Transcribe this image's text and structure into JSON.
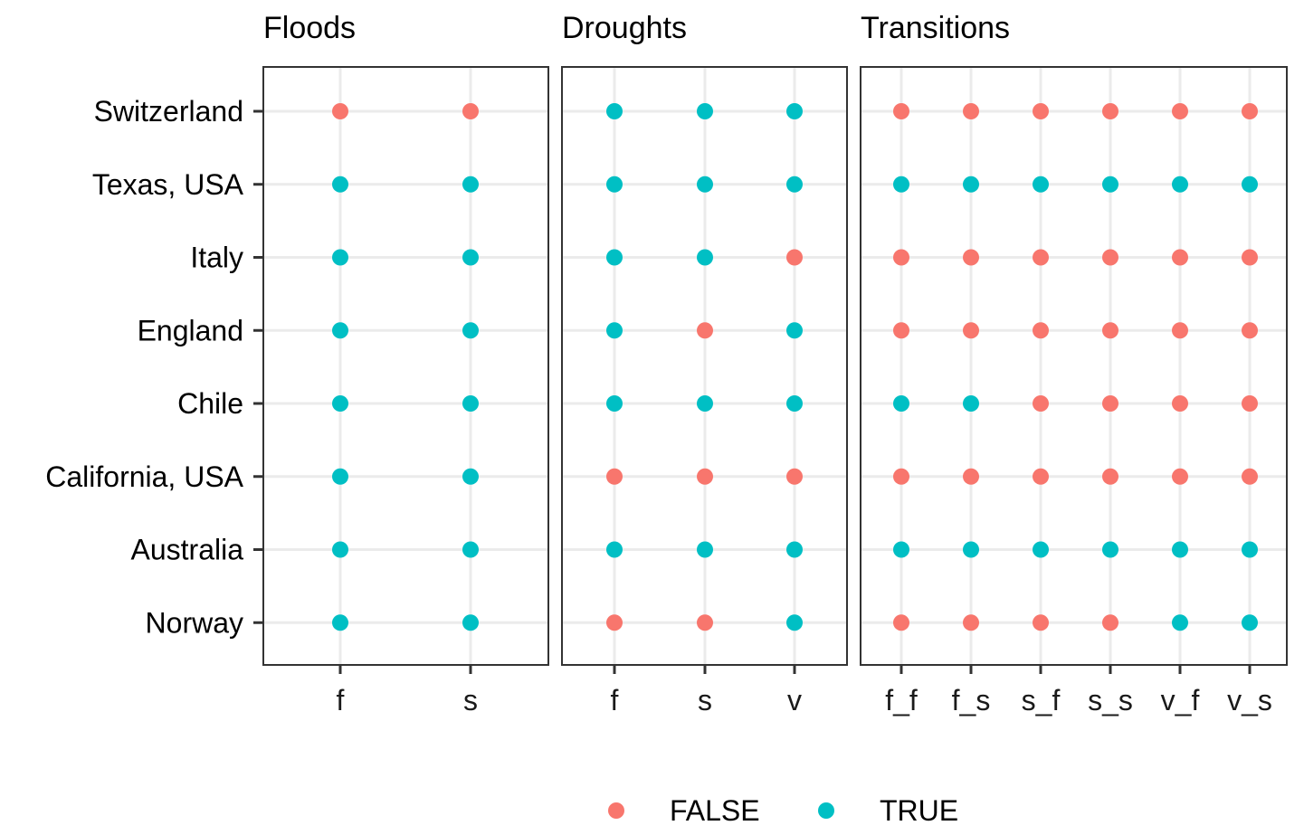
{
  "chart_data": {
    "type": "scatter",
    "panels": [
      {
        "title": "Floods",
        "categories": [
          "f",
          "s"
        ],
        "values": {
          "Switzerland": [
            false,
            false
          ],
          "Texas, USA": [
            true,
            true
          ],
          "Italy": [
            true,
            true
          ],
          "England": [
            true,
            true
          ],
          "Chile": [
            true,
            true
          ],
          "California, USA": [
            true,
            true
          ],
          "Australia": [
            true,
            true
          ],
          "Norway": [
            true,
            true
          ]
        }
      },
      {
        "title": "Droughts",
        "categories": [
          "f",
          "s",
          "v"
        ],
        "values": {
          "Switzerland": [
            true,
            true,
            true
          ],
          "Texas, USA": [
            true,
            true,
            true
          ],
          "Italy": [
            true,
            true,
            false
          ],
          "England": [
            true,
            false,
            true
          ],
          "Chile": [
            true,
            true,
            true
          ],
          "California, USA": [
            false,
            false,
            false
          ],
          "Australia": [
            true,
            true,
            true
          ],
          "Norway": [
            false,
            false,
            true
          ]
        }
      },
      {
        "title": "Transitions",
        "categories": [
          "f_f",
          "f_s",
          "s_f",
          "s_s",
          "v_f",
          "v_s"
        ],
        "values": {
          "Switzerland": [
            false,
            false,
            false,
            false,
            false,
            false
          ],
          "Texas, USA": [
            true,
            true,
            true,
            true,
            true,
            true
          ],
          "Italy": [
            false,
            false,
            false,
            false,
            false,
            false
          ],
          "England": [
            false,
            false,
            false,
            false,
            false,
            false
          ],
          "Chile": [
            true,
            true,
            false,
            false,
            false,
            false
          ],
          "California, USA": [
            false,
            false,
            false,
            false,
            false,
            false
          ],
          "Australia": [
            true,
            true,
            true,
            true,
            true,
            true
          ],
          "Norway": [
            false,
            false,
            false,
            false,
            true,
            true
          ]
        }
      }
    ],
    "y_categories": [
      "Switzerland",
      "Texas, USA",
      "Italy",
      "England",
      "Chile",
      "California, USA",
      "Australia",
      "Norway"
    ],
    "legend": {
      "position": "bottom",
      "entries": [
        {
          "label": "FALSE",
          "value": false,
          "color": "#F8766D"
        },
        {
          "label": "TRUE",
          "value": true,
          "color": "#00BFC4"
        }
      ]
    },
    "grid": true,
    "colors": {
      "false": "#F8766D",
      "true": "#00BFC4",
      "grid": "#EBEBEB",
      "border": "#333333"
    }
  }
}
